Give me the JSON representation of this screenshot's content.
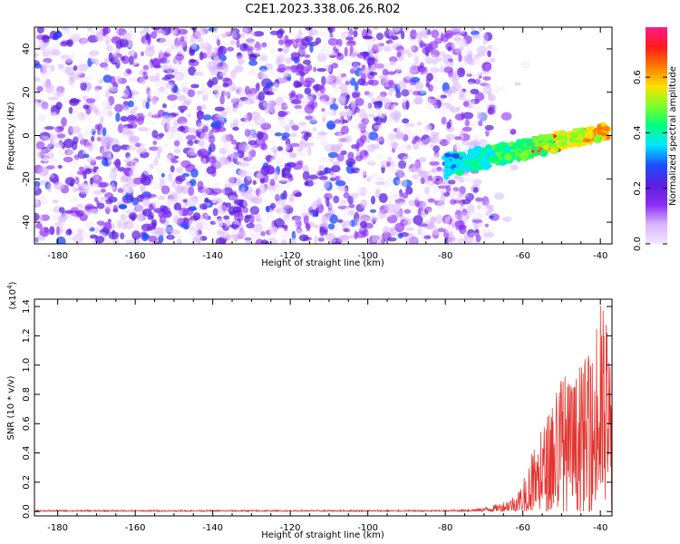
{
  "title": "C2E1.2023.338.06.26.R02",
  "colors": {
    "snr_line": "#e3342f",
    "colorscale": [
      "#f3e6ff",
      "#d8b4fe",
      "#8b2cf5",
      "#5b1fe0",
      "#1d4fff",
      "#00e5ff",
      "#00ff7f",
      "#7dff2a",
      "#ffe000",
      "#ff7a00",
      "#ff1a1a",
      "#ff1a8c"
    ]
  },
  "chart_data": [
    {
      "type": "heatmap",
      "xlabel": "Height of straight line (km)",
      "ylabel": "Frequency (Hz)",
      "xlim": [
        -186,
        -37
      ],
      "ylim": [
        -50,
        50
      ],
      "x_ticks": [
        -180,
        -160,
        -140,
        -120,
        -100,
        -80,
        -60,
        -40
      ],
      "x_tick_labels": [
        "-180",
        "-160",
        "-140",
        "-120",
        "-100",
        "-80",
        "-60",
        "-40"
      ],
      "y_ticks": [
        -40,
        -20,
        0,
        20,
        40
      ],
      "y_tick_labels": [
        "-40",
        "-20",
        "0",
        "20",
        "40"
      ],
      "colorbar": {
        "label": "Normalized spectral amplitude",
        "range": [
          0.0,
          0.78
        ],
        "ticks": [
          0.0,
          0.2,
          0.4,
          0.6
        ],
        "tick_labels": [
          "0.0",
          "0.2",
          "0.4",
          "0.6"
        ]
      },
      "noise_region_x": [
        -186,
        -68
      ],
      "signal_band": {
        "x_start": -80,
        "x_end": -38,
        "center_freq_at_start": -14,
        "center_freq_at_end": 2,
        "peak_amplitude": 0.75,
        "peak_x": -55
      }
    },
    {
      "type": "line",
      "xlabel": "Height of straight line (km)",
      "ylabel": "SNR (10 * v/v)",
      "y_multiplier": "(x10",
      "y_multiplier_exp": "4",
      "y_multiplier_close": ")",
      "xlim": [
        -186,
        -37
      ],
      "ylim": [
        -0.03,
        1.45
      ],
      "x_ticks": [
        -180,
        -160,
        -140,
        -120,
        -100,
        -80,
        -60,
        -40
      ],
      "x_tick_labels": [
        "-180",
        "-160",
        "-140",
        "-120",
        "-100",
        "-80",
        "-60",
        "-40"
      ],
      "y_ticks": [
        0.0,
        0.2,
        0.4,
        0.6,
        0.8,
        1.0,
        1.2,
        1.4
      ],
      "y_tick_labels": [
        "0.0",
        "0.2",
        "0.4",
        "0.6",
        "0.8",
        "1.0",
        "1.2",
        "1.4"
      ],
      "series": [
        {
          "x": [
            -186,
            -160,
            -140,
            -120,
            -100,
            -80,
            -72,
            -68,
            -65,
            -62,
            -60,
            -58,
            -56,
            -54,
            -52,
            -50,
            -48,
            -46,
            -44,
            -42,
            -40,
            -38,
            -37
          ],
          "envelope": [
            0.01,
            0.01,
            0.01,
            0.01,
            0.01,
            0.01,
            0.02,
            0.04,
            0.07,
            0.12,
            0.2,
            0.4,
            0.5,
            0.65,
            0.8,
            1.0,
            0.9,
            0.95,
            1.05,
            1.1,
            1.45,
            1.35,
            0.9
          ]
        }
      ]
    }
  ]
}
